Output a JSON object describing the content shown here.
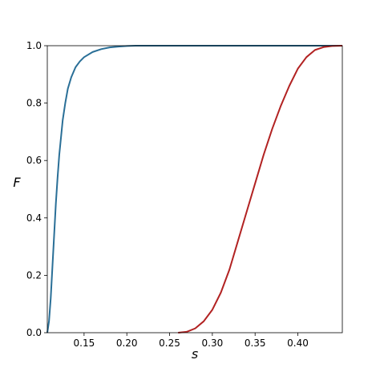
{
  "chart_data": {
    "type": "line",
    "xlabel": "s",
    "ylabel": "F",
    "xlim": [
      0.107,
      0.452
    ],
    "ylim": [
      0.0,
      1.0
    ],
    "x_ticks": [
      0.15,
      0.2,
      0.25,
      0.3,
      0.35,
      0.4
    ],
    "x_tick_labels": [
      "0.15",
      "0.20",
      "0.25",
      "0.30",
      "0.35",
      "0.40"
    ],
    "y_ticks": [
      0.0,
      0.2,
      0.4,
      0.6,
      0.8,
      1.0
    ],
    "y_tick_labels": [
      "0.0",
      "0.2",
      "0.4",
      "0.6",
      "0.8",
      "1.0"
    ],
    "grid": false,
    "series": [
      {
        "color": "#2a6f97",
        "x": [
          0.107,
          0.109,
          0.111,
          0.113,
          0.115,
          0.117,
          0.119,
          0.121,
          0.123,
          0.125,
          0.128,
          0.131,
          0.135,
          0.14,
          0.145,
          0.15,
          0.16,
          0.17,
          0.18,
          0.19,
          0.2,
          0.21,
          0.22,
          0.25,
          0.3,
          0.35,
          0.4,
          0.452
        ],
        "y": [
          0.0,
          0.04,
          0.12,
          0.23,
          0.34,
          0.45,
          0.54,
          0.62,
          0.68,
          0.74,
          0.8,
          0.85,
          0.89,
          0.925,
          0.945,
          0.96,
          0.978,
          0.988,
          0.994,
          0.997,
          0.999,
          1.0,
          1.0,
          1.0,
          1.0,
          1.0,
          1.0,
          1.0
        ]
      },
      {
        "color": "#b22222",
        "x": [
          0.26,
          0.27,
          0.28,
          0.29,
          0.3,
          0.31,
          0.32,
          0.33,
          0.34,
          0.35,
          0.36,
          0.37,
          0.38,
          0.39,
          0.4,
          0.41,
          0.42,
          0.43,
          0.44,
          0.452
        ],
        "y": [
          0.0,
          0.003,
          0.015,
          0.04,
          0.08,
          0.14,
          0.22,
          0.32,
          0.42,
          0.52,
          0.62,
          0.71,
          0.79,
          0.86,
          0.92,
          0.96,
          0.985,
          0.995,
          0.999,
          1.0
        ]
      }
    ]
  }
}
